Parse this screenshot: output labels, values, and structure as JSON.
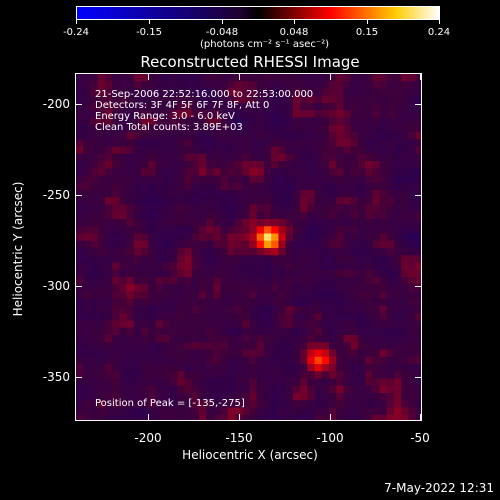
{
  "colorbar": {
    "ticks": [
      "-0.24",
      "-0.15",
      "-0.048",
      "0.048",
      "0.15",
      "0.24"
    ],
    "units_text": "(photons cm⁻² s⁻¹ asec⁻²)"
  },
  "plot": {
    "title": "Reconstructed RHESSI Image",
    "info": {
      "line1": "21-Sep-2006 22:52:16.000 to 22:53:00.000",
      "line2": "Detectors: 3F 4F 5F 6F 7F 8F, Att 0",
      "line3": "Energy Range: 3.0 - 6.0 keV",
      "line4": "Clean    Total counts: 3.89E+03"
    },
    "peak_text": "Position of Peak = [-135,-275]"
  },
  "chart_data": {
    "type": "heatmap",
    "title": "Reconstructed RHESSI Image",
    "xlabel": "Heliocentric X (arcsec)",
    "ylabel": "Heliocentric Y (arcsec)",
    "xlim": [
      -240,
      -50
    ],
    "ylim": [
      -375,
      -185
    ],
    "x_ticks": [
      "-200",
      "-150",
      "-100",
      "-50"
    ],
    "y_ticks": [
      "-200",
      "-250",
      "-300",
      "-350"
    ],
    "colorbar": {
      "min": -0.24,
      "max": 0.24,
      "colormap": [
        "#0000ff",
        "#000000",
        "#ff0000",
        "#ffff00",
        "#ffffff"
      ]
    },
    "peak": {
      "x": -135,
      "y": -275
    },
    "sources": [
      {
        "x": -135,
        "y": -275,
        "intensity": 0.24
      },
      {
        "x": -108,
        "y": -342,
        "intensity": 0.13
      }
    ]
  },
  "footer": {
    "timestamp": "7-May-2022 12:31"
  }
}
